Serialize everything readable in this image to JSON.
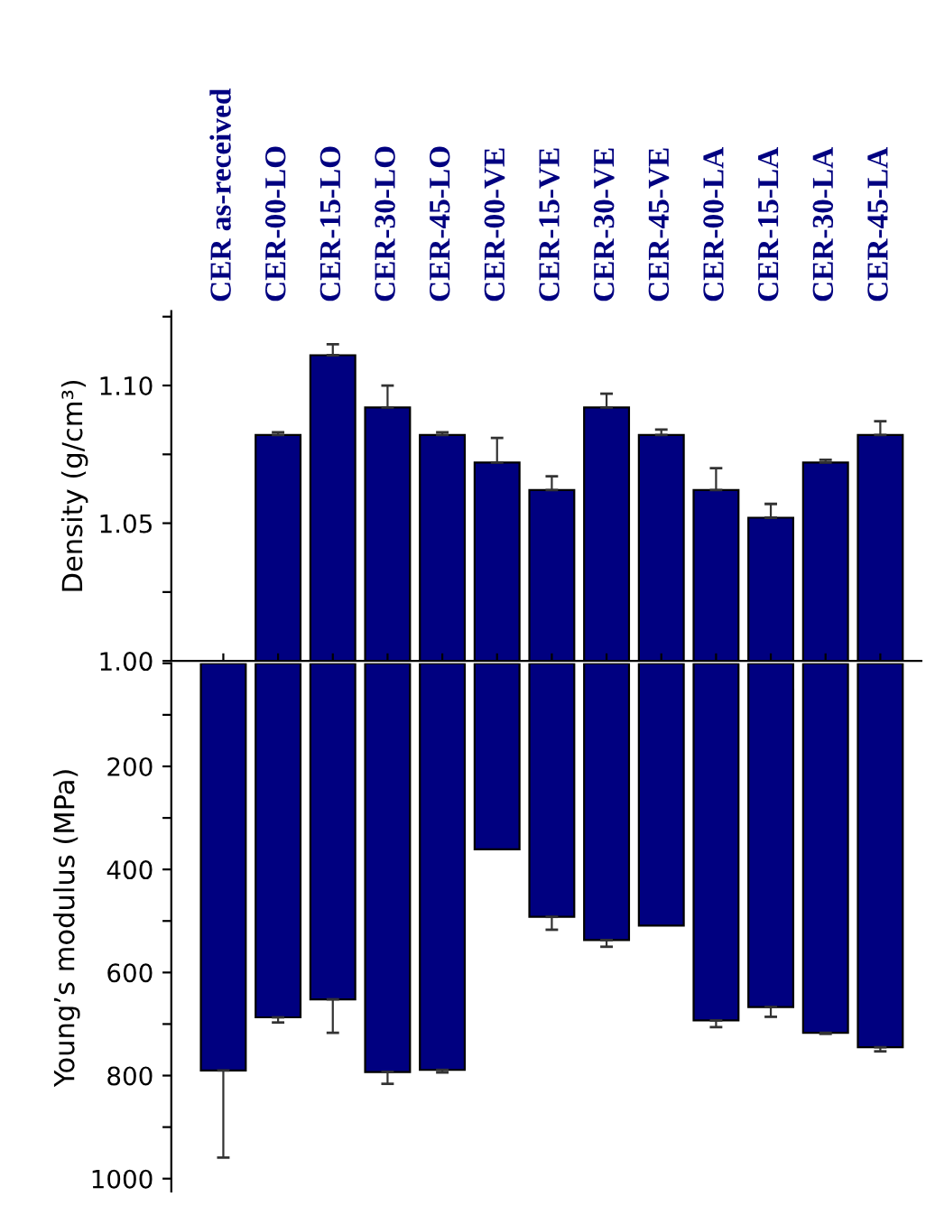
{
  "chart_data": [
    {
      "type": "bar",
      "categories": [
        "CER as-received",
        "CER-00-LO",
        "CER-15-LO",
        "CER-30-LO",
        "CER-45-LO",
        "CER-00-VE",
        "CER-15-VE",
        "CER-30-VE",
        "CER-45-VE",
        "CER-00-LA",
        "CER-15-LA",
        "CER-30-LA",
        "CER-45-LA"
      ],
      "values": [
        null,
        1.082,
        1.111,
        1.092,
        1.082,
        1.072,
        1.062,
        1.092,
        1.082,
        1.062,
        1.052,
        1.072,
        1.082
      ],
      "errors": [
        null,
        0.001,
        0.004,
        0.008,
        0.001,
        0.009,
        0.005,
        0.005,
        0.002,
        0.008,
        0.005,
        0.001,
        0.005
      ],
      "color": "#000080",
      "ylabel": "Density (g/cm³)",
      "ylim": [
        1.0,
        1.127
      ],
      "yticks": [
        {
          "value": 1.0,
          "label": "1.00"
        },
        {
          "value": 1.025,
          "label": null
        },
        {
          "value": 1.05,
          "label": "1.05"
        },
        {
          "value": 1.075,
          "label": null
        },
        {
          "value": 1.1,
          "label": "1.10"
        },
        {
          "value": 1.125,
          "label": null
        }
      ],
      "grid": false,
      "legend": false
    },
    {
      "type": "bar",
      "categories": [
        null,
        null,
        null,
        null,
        null,
        null,
        null,
        null,
        null,
        null,
        null,
        null,
        null
      ],
      "values": [
        790,
        687,
        652,
        793,
        789,
        361,
        492,
        537,
        509,
        693,
        667,
        717,
        745
      ],
      "errors": [
        169,
        10,
        65,
        23,
        5,
        null,
        25,
        13,
        null,
        13,
        19,
        2,
        8
      ],
      "color": "#000080",
      "ylabel": "Young’s modulus (MPa)",
      "ylim": [
        1025,
        0
      ],
      "yticks": [
        {
          "value": 0,
          "label": null
        },
        {
          "value": 100,
          "label": null
        },
        200,
        {
          "value": 300,
          "label": null
        },
        400,
        {
          "value": 500,
          "label": null
        },
        600,
        {
          "value": 700,
          "label": null
        },
        800,
        {
          "value": 900,
          "label": null
        },
        1000
      ],
      "tick_labels": "y",
      "grid": false,
      "legend": false
    }
  ]
}
